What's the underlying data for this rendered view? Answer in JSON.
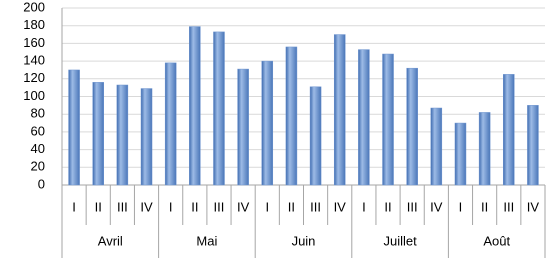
{
  "chart_data": {
    "type": "bar",
    "categories": [
      "I",
      "II",
      "III",
      "IV",
      "I",
      "II",
      "III",
      "IV",
      "I",
      "II",
      "III",
      "IV",
      "I",
      "II",
      "III",
      "IV",
      "I",
      "II",
      "III",
      "IV"
    ],
    "groups": [
      "Avril",
      "Mai",
      "Juin",
      "Juillet",
      "Août"
    ],
    "values": [
      130,
      116,
      113,
      109,
      138,
      179,
      173,
      131,
      140,
      156,
      111,
      170,
      153,
      148,
      132,
      87,
      70,
      82,
      125,
      90
    ],
    "color": "#6f95cf",
    "ylim": [
      0,
      200
    ],
    "yticks": [
      0,
      20,
      40,
      60,
      80,
      100,
      120,
      140,
      160,
      180,
      200
    ],
    "grid": true
  }
}
